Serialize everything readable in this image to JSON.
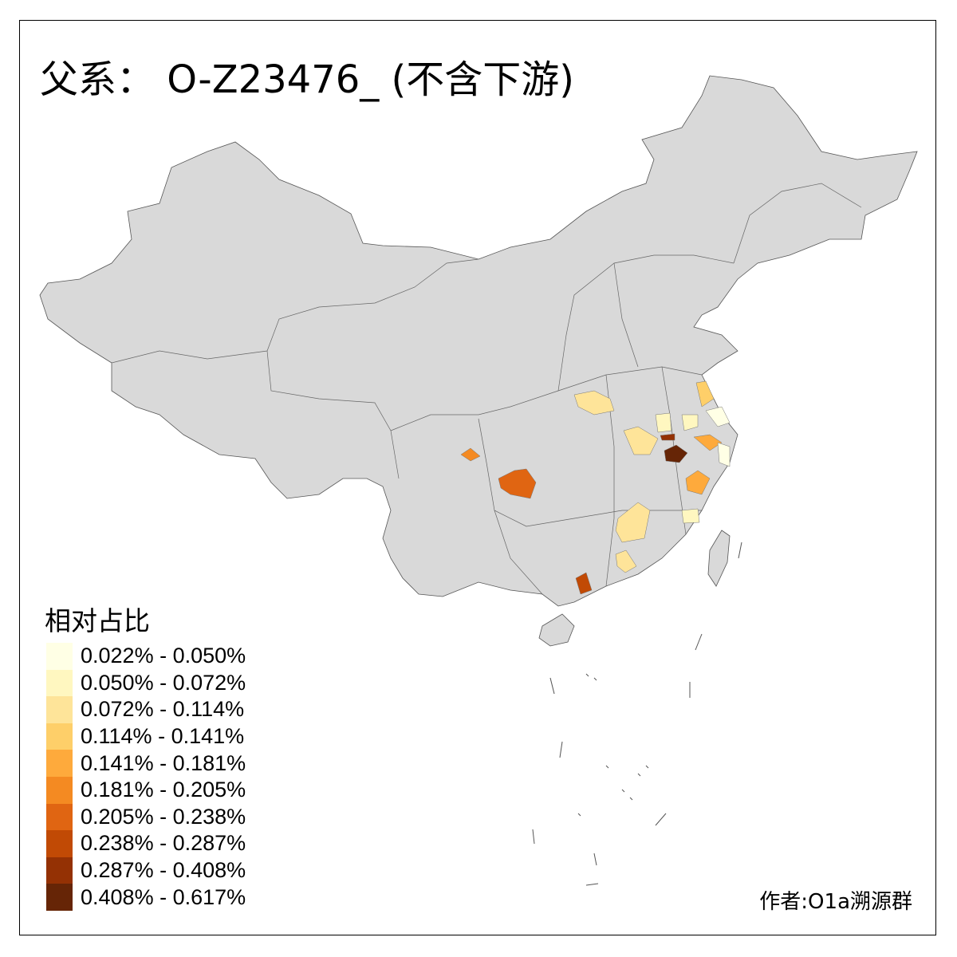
{
  "title": "父系： O-Z23476_ (不含下游)",
  "legend": {
    "title": "相对占比",
    "bins": [
      {
        "label": "0.022% - 0.050%",
        "color": "#FFFFE5"
      },
      {
        "label": "0.050% - 0.072%",
        "color": "#FFF7C0"
      },
      {
        "label": "0.072% - 0.114%",
        "color": "#FEE499"
      },
      {
        "label": "0.114% - 0.141%",
        "color": "#FECF69"
      },
      {
        "label": "0.141% - 0.181%",
        "color": "#FEAA3C"
      },
      {
        "label": "0.181% - 0.205%",
        "color": "#F48A22"
      },
      {
        "label": "0.205% - 0.238%",
        "color": "#E06512"
      },
      {
        "label": "0.238% - 0.287%",
        "color": "#C14A05"
      },
      {
        "label": "0.287% - 0.408%",
        "color": "#943104"
      },
      {
        "label": "0.408% - 0.617%",
        "color": "#662506"
      }
    ]
  },
  "base_color": "#D9D9D9",
  "highlighted_region_bins": [
    2,
    3,
    0,
    1,
    1,
    2,
    8,
    9,
    4,
    0,
    1,
    2,
    4,
    7,
    6,
    5,
    2
  ],
  "credit": "作者:O1a溯源群"
}
